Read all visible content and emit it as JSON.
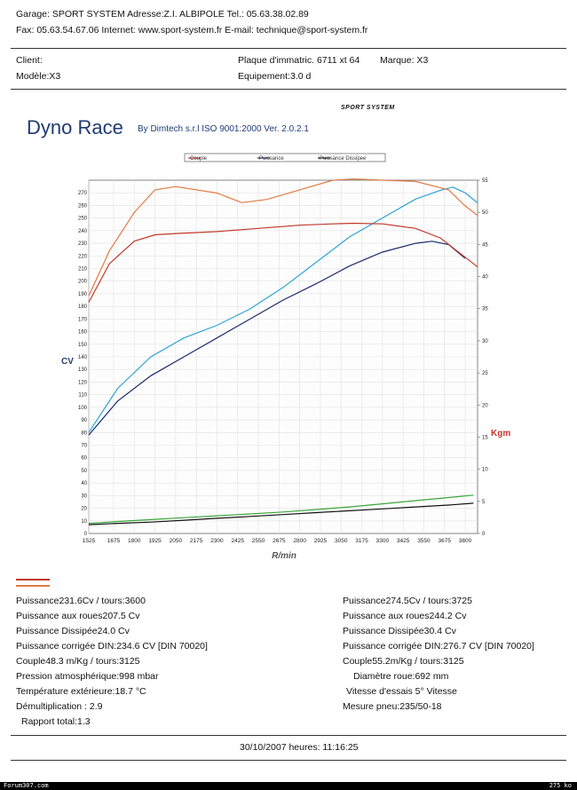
{
  "header": {
    "line1": "Garage: SPORT SYSTEM    Adresse:Z.I. ALBIPOLE    Tel.: 05.63.38.02.89",
    "line2": "Fax: 05.63.54.67.06    Internet: www.sport-system.fr    E-mail: technique@sport-system.fr"
  },
  "client": {
    "client_label": "Client:",
    "modele": "Modèle:X3",
    "plaque": "Plaque d'immatric. 6711 xt 64",
    "marque": "Marque: X3",
    "equipement": "Equipement:3.0 d"
  },
  "brand": {
    "title": "Dyno Race",
    "subtitle": "By Dimtech s.r.l   ISO 9001:2000   Ver. 2.0.2.1",
    "logo": "SPORT SYSTEM"
  },
  "colors": {
    "couple": "#c0392b",
    "couple_after": "#e07a45",
    "puissance": "#1a2a6b",
    "puissance_after": "#2ea3d4",
    "dissipee": "#111111",
    "dissipee_after": "#3aa63a"
  },
  "chart_data": {
    "type": "line",
    "legend": [
      "Couple",
      "Puissance",
      "Puissance Dissipee"
    ],
    "legend_placement": "top",
    "xlabel": "R/min",
    "ylabel_left": "CV",
    "ylabel_right": "Kgm",
    "x_ticks": [
      "1525",
      "1675",
      "1800",
      "1925",
      "2050",
      "2175",
      "2300",
      "2425",
      "2550",
      "2675",
      "2800",
      "2925",
      "3050",
      "3175",
      "3300",
      "3425",
      "3550",
      "3675",
      "3800"
    ],
    "y_left_ticks": [
      0,
      10,
      20,
      30,
      40,
      50,
      60,
      70,
      80,
      90,
      100,
      110,
      120,
      130,
      140,
      150,
      160,
      170,
      180,
      190,
      200,
      210,
      220,
      230,
      240,
      250,
      260,
      270
    ],
    "y_right_ticks": [
      0,
      5,
      10,
      15,
      20,
      25,
      30,
      35,
      40,
      45,
      50,
      55
    ],
    "xlim": [
      1525,
      3875
    ],
    "ylim_left": [
      0,
      280
    ],
    "ylim_right": [
      0,
      55
    ],
    "grid": true,
    "series": [
      {
        "name": "Puissance",
        "axis": "left",
        "color": "#1a2a6b",
        "x": [
          1525,
          1700,
          1900,
          2100,
          2300,
          2500,
          2700,
          2900,
          3100,
          3300,
          3500,
          3600,
          3700,
          3800
        ],
        "y": [
          78,
          105,
          125,
          140,
          155,
          170,
          185,
          198,
          212,
          223,
          230,
          231.6,
          229,
          218
        ]
      },
      {
        "name": "Puissance",
        "axis": "left",
        "color": "#2ea3d4",
        "x": [
          1525,
          1700,
          1900,
          2100,
          2300,
          2500,
          2700,
          2900,
          3100,
          3300,
          3500,
          3650,
          3725,
          3800,
          3875
        ],
        "y": [
          80,
          115,
          140,
          155,
          165,
          178,
          195,
          215,
          235,
          250,
          265,
          272,
          274.5,
          270,
          262
        ]
      },
      {
        "name": "Couple",
        "axis": "right",
        "color": "#c0392b",
        "x": [
          1525,
          1650,
          1800,
          1925,
          2050,
          2300,
          2550,
          2800,
          3000,
          3125,
          3300,
          3500,
          3650,
          3800,
          3875
        ],
        "y": [
          36,
          42,
          45.5,
          46.5,
          46.7,
          47,
          47.5,
          48,
          48.2,
          48.3,
          48.2,
          47.5,
          46,
          43,
          41.5
        ]
      },
      {
        "name": "Couple",
        "axis": "right",
        "color": "#e07a45",
        "x": [
          1525,
          1650,
          1800,
          1925,
          2050,
          2300,
          2450,
          2600,
          2800,
          3000,
          3125,
          3300,
          3500,
          3700,
          3800,
          3875
        ],
        "y": [
          37,
          44,
          50,
          53.5,
          54,
          53,
          51.5,
          52,
          53.5,
          55,
          55.2,
          55,
          54.8,
          53.5,
          51,
          49.5
        ]
      },
      {
        "name": "Puissance Dissipee",
        "axis": "left",
        "color": "#111111",
        "x": [
          1525,
          1700,
          1900,
          2100,
          2300,
          2500,
          2700,
          2900,
          3100,
          3300,
          3500,
          3700,
          3850
        ],
        "y": [
          7,
          8,
          9,
          10.5,
          12,
          13.5,
          15,
          16.5,
          18,
          19.5,
          21,
          22.5,
          24
        ]
      },
      {
        "name": "Puissance Dissipee",
        "axis": "left",
        "color": "#3aa63a",
        "x": [
          1525,
          1700,
          1900,
          2100,
          2300,
          2500,
          2700,
          2900,
          3100,
          3300,
          3500,
          3700,
          3850
        ],
        "y": [
          8,
          9.5,
          11,
          12.5,
          14,
          15.5,
          17,
          19,
          21,
          23.5,
          26,
          28.5,
          30.4
        ]
      }
    ]
  },
  "results_left": {
    "puissance": "Puissance231.6Cv / tours:3600",
    "aux_roues": "Puissance aux roues207.5 Cv",
    "dissipee": "Puissance Dissipée24.0 Cv",
    "corrigee": "Puissance corrigée DIN:234.6 CV   [DIN 70020]",
    "couple": "Couple48.3 m/Kg / tours:3125",
    "pression": "Pression atmosphérique:998 mbar",
    "temperature": "Température extérieure:18.7 °C",
    "demultiplication": "Démultiplication : 2.9",
    "rapport": "Rapport total:1.3"
  },
  "results_right": {
    "puissance": "Puissance274.5Cv / tours:3725",
    "aux_roues": "Puissance aux roues244.2 Cv",
    "dissipee": "Puissance Dissipée30.4 Cv",
    "corrigee": "Puissance corrigée DIN:276.7 CV   [DIN 70020]",
    "couple": "Couple55.2m/Kg / tours:3125",
    "diametre": "Diamètre roue:692 mm",
    "vitesse": "Vitesse d'essais 5° Vitesse",
    "pneu": "Mesure pneu:235/50-18"
  },
  "footer": {
    "date": "30/10/2007 heures:  11:16:25"
  },
  "bottom_bar": {
    "left": "Forum307.com",
    "right": "275 ko"
  }
}
